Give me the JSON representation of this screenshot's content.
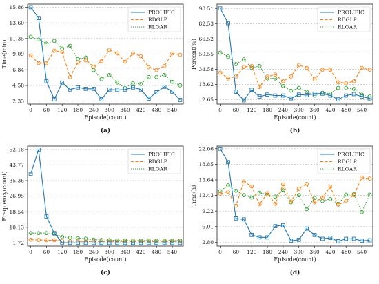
{
  "colors": {
    "PROLIFIC": "#1f77b4",
    "RDGLP": "#ff7f0e",
    "RLOAR": "#2ca02c",
    "grid": "#bbbbbb"
  },
  "chart_data": [
    {
      "type": "line",
      "caption": "(a)",
      "xlabel": "Episode(count)",
      "ylabel": "Time(min)",
      "xticks": [
        0,
        60,
        120,
        180,
        240,
        300,
        360,
        420,
        480,
        540
      ],
      "yticks": [
        "2.33",
        "4.58",
        "6.84",
        "9.09",
        "11.35",
        "13.60",
        "15.86"
      ],
      "ylim": [
        1.9,
        16.3
      ],
      "grid": true,
      "legend_position": "top-right",
      "x": [
        0,
        30,
        60,
        90,
        120,
        150,
        180,
        210,
        240,
        270,
        300,
        330,
        360,
        390,
        420,
        450,
        480,
        510,
        540,
        570
      ],
      "series": [
        {
          "name": "PROLIFIC",
          "values": [
            15.86,
            14.3,
            5.2,
            2.6,
            5.0,
            4.0,
            4.3,
            4.1,
            4.1,
            2.6,
            4.0,
            3.95,
            4.0,
            4.3,
            4.0,
            2.7,
            3.6,
            4.4,
            3.7,
            2.5
          ]
        },
        {
          "name": "RDGLP",
          "values": [
            8.9,
            7.8,
            7.8,
            9.6,
            9.4,
            5.8,
            7.9,
            8.2,
            7.3,
            8.1,
            9.7,
            9.2,
            8.0,
            9.2,
            8.8,
            7.2,
            6.8,
            7.4,
            9.2,
            9.0
          ]
        },
        {
          "name": "RLOAR",
          "values": [
            11.6,
            11.2,
            10.6,
            11.0,
            9.9,
            10.3,
            8.4,
            8.6,
            6.8,
            5.5,
            6.1,
            5.0,
            4.2,
            4.9,
            4.8,
            5.8,
            5.8,
            6.1,
            5.1,
            4.6
          ]
        }
      ]
    },
    {
      "type": "line",
      "caption": "(b)",
      "xlabel": "Episode(count)",
      "ylabel": "Percent(%)",
      "xticks": [
        0,
        60,
        120,
        180,
        240,
        300,
        360,
        420,
        480,
        540
      ],
      "yticks": [
        "2.65",
        "18.62",
        "34.58",
        "50.55",
        "66.52",
        "82.53",
        "98.51"
      ],
      "ylim": [
        -2.0,
        103.0
      ],
      "grid": true,
      "legend_position": "top-right",
      "x": [
        0,
        30,
        60,
        90,
        120,
        150,
        180,
        210,
        240,
        270,
        300,
        330,
        360,
        390,
        420,
        450,
        480,
        510,
        540,
        570
      ],
      "series": [
        {
          "name": "PROLIFIC",
          "values": [
            98.51,
            83.0,
            11.0,
            2.0,
            13.0,
            6.0,
            8.0,
            7.0,
            7.0,
            4.0,
            8.0,
            7.5,
            9.0,
            9.0,
            7.0,
            3.0,
            7.0,
            8.5,
            6.0,
            4.0
          ]
        },
        {
          "name": "RDGLP",
          "values": [
            31.0,
            25.0,
            27.0,
            37.0,
            38.0,
            16.0,
            27.0,
            29.0,
            22.0,
            27.0,
            39.0,
            36.0,
            24.0,
            34.0,
            34.0,
            21.0,
            20.0,
            22.0,
            36.0,
            34.0
          ]
        },
        {
          "name": "RLOAR",
          "values": [
            52.0,
            48.0,
            40.0,
            45.0,
            36.0,
            38.0,
            25.0,
            25.0,
            17.0,
            12.0,
            15.0,
            11.0,
            7.0,
            10.0,
            9.0,
            15.0,
            15.0,
            14.0,
            8.0,
            6.0
          ]
        }
      ]
    },
    {
      "type": "line",
      "caption": "(c)",
      "xlabel": "Episode(count)",
      "ylabel": "Frequency(count)",
      "xticks": [
        0,
        60,
        120,
        180,
        240,
        300,
        360,
        420,
        480,
        540
      ],
      "yticks": [
        "1.72",
        "10.13",
        "18.54",
        "26.95",
        "35.36",
        "43.77",
        "52.18"
      ],
      "ylim": [
        0.0,
        54.0
      ],
      "grid": true,
      "legend_position": "top-right",
      "x": [
        0,
        30,
        60,
        90,
        120,
        150,
        180,
        210,
        240,
        270,
        300,
        330,
        360,
        390,
        420,
        450,
        480,
        510,
        540,
        570
      ],
      "series": [
        {
          "name": "PROLIFIC",
          "values": [
            39.0,
            52.18,
            16.0,
            7.0,
            1.9,
            1.75,
            1.75,
            1.72,
            1.72,
            1.72,
            1.72,
            1.72,
            1.72,
            1.72,
            1.72,
            1.72,
            1.72,
            1.72,
            1.72,
            1.72
          ]
        },
        {
          "name": "RDGLP",
          "values": [
            3.5,
            3.3,
            3.2,
            3.2,
            2.8,
            2.6,
            2.6,
            2.5,
            2.5,
            2.5,
            2.5,
            2.5,
            2.5,
            2.5,
            2.5,
            2.5,
            2.5,
            2.5,
            2.5,
            2.5
          ]
        },
        {
          "name": "RLOAR",
          "values": [
            7.0,
            7.0,
            7.0,
            6.5,
            5.0,
            4.5,
            4.2,
            4.0,
            3.5,
            3.3,
            3.2,
            3.1,
            3.0,
            3.0,
            3.0,
            3.0,
            3.0,
            3.0,
            3.0,
            3.0
          ]
        }
      ]
    },
    {
      "type": "line",
      "caption": "(d)",
      "xlabel": "Episode(count)",
      "ylabel": "Time(h)",
      "xticks": [
        0,
        60,
        120,
        180,
        240,
        300,
        360,
        420,
        480,
        540
      ],
      "yticks": [
        "2.80",
        "6.01",
        "9.22",
        "12.43",
        "15.64",
        "18.85",
        "22.06"
      ],
      "ylim": [
        2.0,
        22.6
      ],
      "grid": true,
      "legend_position": "top-right",
      "x": [
        0,
        30,
        60,
        90,
        120,
        150,
        180,
        210,
        240,
        270,
        300,
        330,
        360,
        390,
        420,
        450,
        480,
        510,
        540,
        570
      ],
      "series": [
        {
          "name": "PROLIFIC",
          "values": [
            22.06,
            19.3,
            7.7,
            7.5,
            4.3,
            3.8,
            3.8,
            6.1,
            6.3,
            3.1,
            3.3,
            5.6,
            4.3,
            3.5,
            3.7,
            3.0,
            3.5,
            3.5,
            3.1,
            3.2
          ]
        },
        {
          "name": "RDGLP",
          "values": [
            12.8,
            13.2,
            10.3,
            15.3,
            14.3,
            10.6,
            12.9,
            10.7,
            14.7,
            11.2,
            13.8,
            14.8,
            11.0,
            12.0,
            14.2,
            10.5,
            11.3,
            12.5,
            16.1,
            15.9
          ]
        },
        {
          "name": "RLOAR",
          "values": [
            13.3,
            14.5,
            13.4,
            12.5,
            12.0,
            13.0,
            12.6,
            12.2,
            13.5,
            11.0,
            12.5,
            9.6,
            11.9,
            11.3,
            11.7,
            10.7,
            12.6,
            12.7,
            9.0,
            12.6
          ]
        }
      ]
    }
  ]
}
